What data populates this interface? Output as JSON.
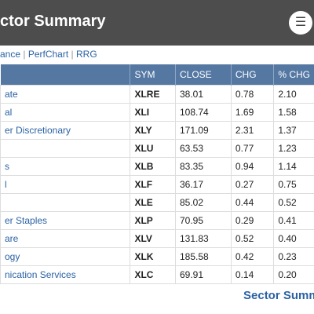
{
  "header": {
    "title": "ctor Summary"
  },
  "links": [
    "ance",
    "PerfChart",
    "RRG"
  ],
  "table": {
    "columns": [
      "SYM",
      "CLOSE",
      "CHG",
      "% CHG"
    ],
    "rows": [
      {
        "name": "ate",
        "cells": [
          "XLRE",
          "38.01",
          "0.78",
          "2.10"
        ]
      },
      {
        "name": "al",
        "cells": [
          "XLI",
          "108.74",
          "1.69",
          "1.58"
        ]
      },
      {
        "name": "er Discretionary",
        "cells": [
          "XLY",
          "171.09",
          "2.31",
          "1.37"
        ]
      },
      {
        "cells": [
          "XLU",
          "63.53",
          "0.77",
          "1.23"
        ]
      },
      {
        "name": "s",
        "cells": [
          "XLB",
          "83.35",
          "0.94",
          "1.14"
        ]
      },
      {
        "name": "l",
        "cells": [
          "XLF",
          "36.17",
          "0.27",
          "0.75"
        ]
      },
      {
        "cells": [
          "XLE",
          "85.02",
          "0.44",
          "0.52"
        ]
      },
      {
        "name": "er Staples",
        "cells": [
          "XLP",
          "70.95",
          "0.29",
          "0.41"
        ]
      },
      {
        "name": "are",
        "cells": [
          "XLV",
          "131.83",
          "0.52",
          "0.40"
        ]
      },
      {
        "name": "ogy",
        "cells": [
          "XLK",
          "185.58",
          "0.42",
          "0.23"
        ]
      },
      {
        "name": "nication Services",
        "cells": [
          "XLC",
          "69.91",
          "0.14",
          "0.20"
        ]
      }
    ]
  },
  "footer": {
    "title": "Sector Summ"
  }
}
